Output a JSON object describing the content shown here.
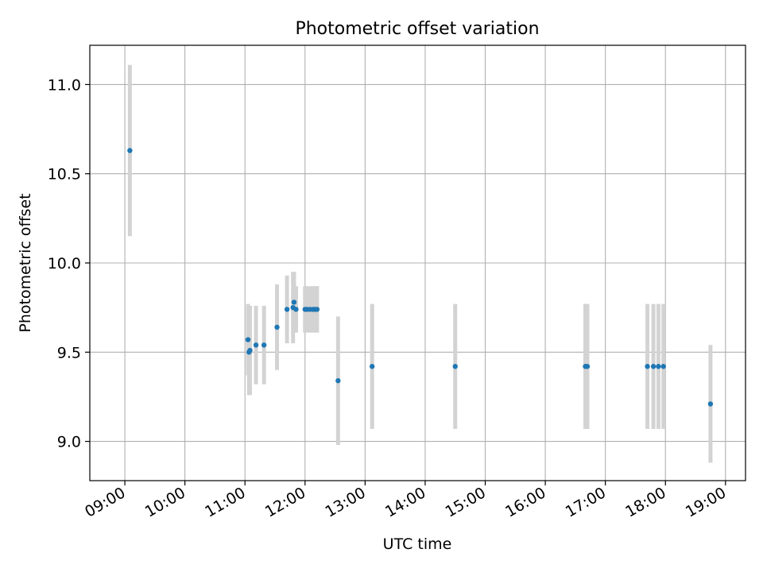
{
  "chart_data": {
    "type": "scatter",
    "title": "Photometric offset variation",
    "xlabel": "UTC time",
    "ylabel": "Photometric offset",
    "xlim": [
      "08:25",
      "19:20"
    ],
    "ylim": [
      8.78,
      11.22
    ],
    "x_ticks": [
      "09:00",
      "10:00",
      "11:00",
      "12:00",
      "13:00",
      "14:00",
      "15:00",
      "16:00",
      "17:00",
      "18:00",
      "19:00"
    ],
    "y_ticks": [
      9.0,
      9.5,
      10.0,
      10.5,
      11.0
    ],
    "y_tick_labels": [
      "9.0",
      "9.5",
      "10.0",
      "10.5",
      "11.0"
    ],
    "grid": true,
    "point_color": "#1f77b4",
    "errorbar_color": "#d3d3d3",
    "points": [
      {
        "x": "09:05",
        "y": 10.63,
        "err": 0.48
      },
      {
        "x": "11:03",
        "y": 9.57,
        "err": 0.2
      },
      {
        "x": "11:04",
        "y": 9.5,
        "err": 0.24
      },
      {
        "x": "11:05",
        "y": 9.51,
        "err": 0.25
      },
      {
        "x": "11:11",
        "y": 9.54,
        "err": 0.22
      },
      {
        "x": "11:19",
        "y": 9.54,
        "err": 0.22
      },
      {
        "x": "11:32",
        "y": 9.64,
        "err": 0.24
      },
      {
        "x": "11:42",
        "y": 9.74,
        "err": 0.19
      },
      {
        "x": "11:48",
        "y": 9.75,
        "err": 0.2
      },
      {
        "x": "11:49",
        "y": 9.78,
        "err": 0.17
      },
      {
        "x": "11:51",
        "y": 9.74,
        "err": 0.13
      },
      {
        "x": "12:00",
        "y": 9.74,
        "err": 0.13
      },
      {
        "x": "12:02",
        "y": 9.74,
        "err": 0.13
      },
      {
        "x": "12:05",
        "y": 9.74,
        "err": 0.13
      },
      {
        "x": "12:08",
        "y": 9.74,
        "err": 0.13
      },
      {
        "x": "12:10",
        "y": 9.74,
        "err": 0.13
      },
      {
        "x": "12:12",
        "y": 9.74,
        "err": 0.13
      },
      {
        "x": "12:33",
        "y": 9.34,
        "err": 0.36
      },
      {
        "x": "13:07",
        "y": 9.42,
        "err": 0.35
      },
      {
        "x": "14:30",
        "y": 9.42,
        "err": 0.35
      },
      {
        "x": "16:40",
        "y": 9.42,
        "err": 0.35
      },
      {
        "x": "16:42",
        "y": 9.42,
        "err": 0.35
      },
      {
        "x": "17:42",
        "y": 9.42,
        "err": 0.35
      },
      {
        "x": "17:48",
        "y": 9.42,
        "err": 0.35
      },
      {
        "x": "17:53",
        "y": 9.42,
        "err": 0.35
      },
      {
        "x": "17:58",
        "y": 9.42,
        "err": 0.35
      },
      {
        "x": "18:45",
        "y": 9.21,
        "err": 0.33
      }
    ]
  }
}
